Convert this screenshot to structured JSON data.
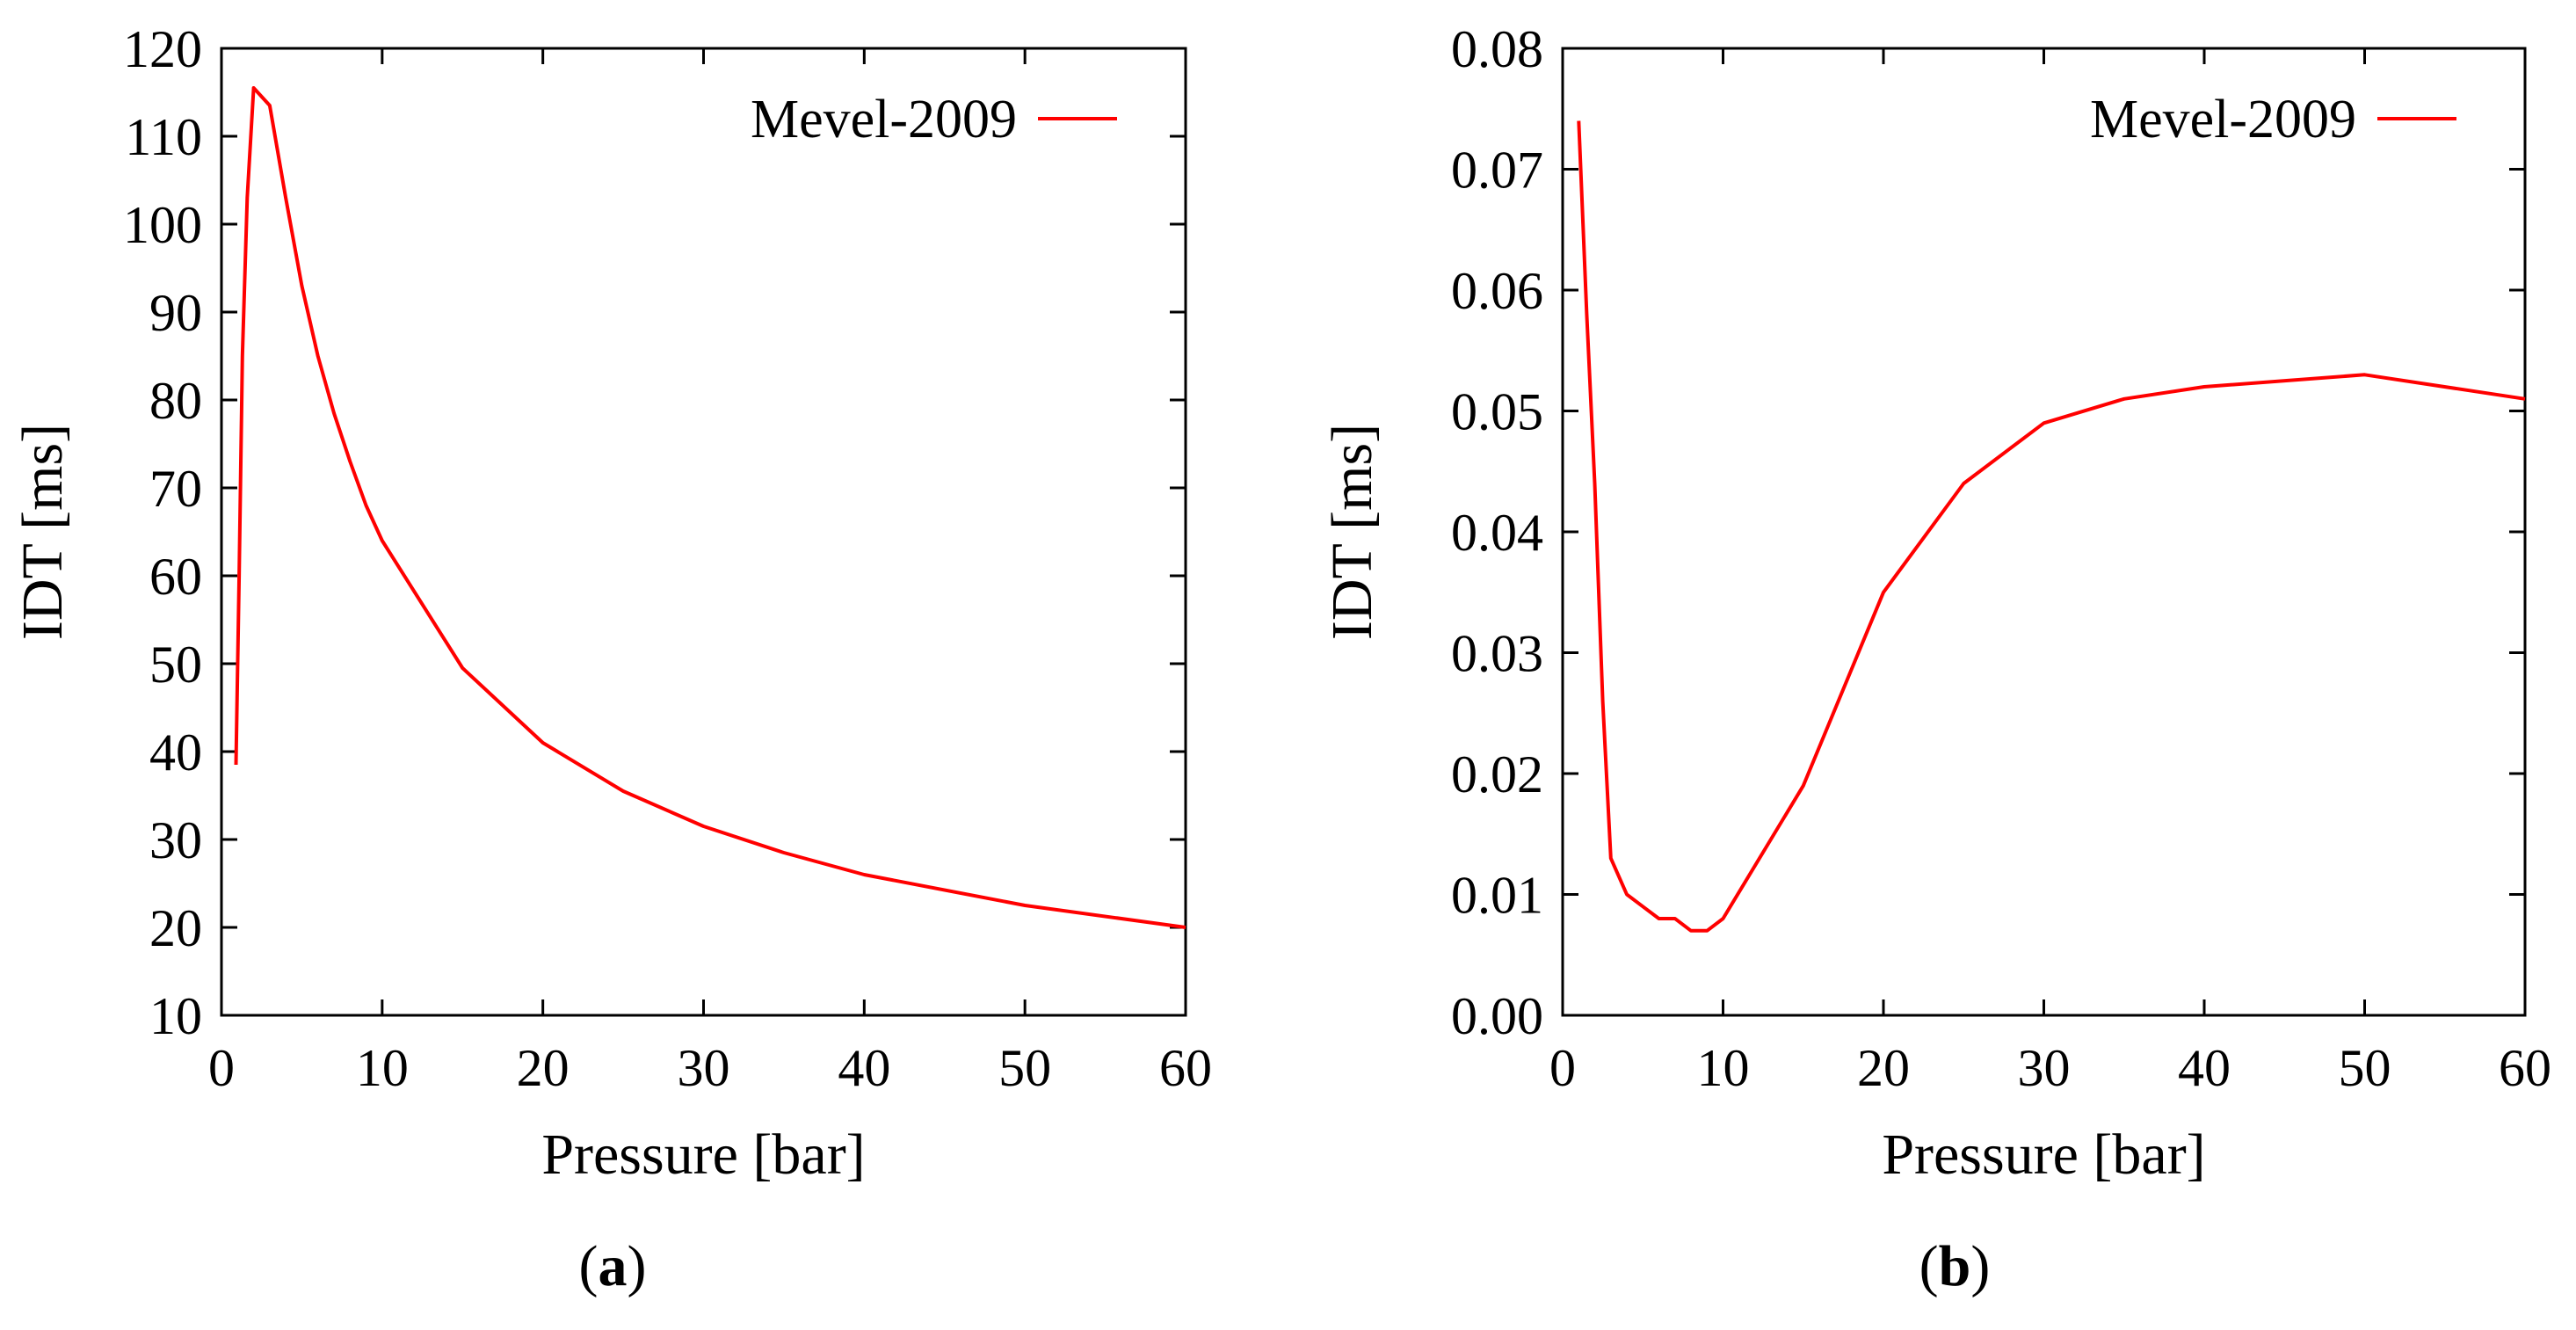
{
  "figure": {
    "panels": [
      {
        "label_open": "(",
        "label_letter": "a",
        "label_close": ")"
      },
      {
        "label_open": "(",
        "label_letter": "b",
        "label_close": ")"
      }
    ]
  },
  "chart_data": [
    {
      "type": "line",
      "title": "",
      "xlabel": "Pressure [bar]",
      "ylabel": "IDT [ms]",
      "xlim": [
        0,
        60
      ],
      "ylim": [
        10,
        120
      ],
      "xticks": [
        0,
        10,
        20,
        30,
        40,
        50,
        60
      ],
      "xtick_labels": [
        "0",
        "10",
        "20",
        "30",
        "40",
        "50",
        "60"
      ],
      "yticks": [
        10,
        20,
        30,
        40,
        50,
        60,
        70,
        80,
        90,
        100,
        110,
        120
      ],
      "ytick_labels": [
        "10",
        "20",
        "30",
        "40",
        "50",
        "60",
        "70",
        "80",
        "90",
        "100",
        "110",
        "120"
      ],
      "legend_position": "top-right",
      "series": [
        {
          "name": "Mevel-2009",
          "color": "#ff0000",
          "x": [
            0.9,
            1.1,
            1.3,
            1.6,
            2,
            3,
            4,
            5,
            6,
            7,
            8,
            9,
            10,
            15,
            20,
            25,
            30,
            35,
            40,
            50,
            60
          ],
          "y": [
            38.5,
            60,
            85,
            103,
            115.5,
            113.5,
            103,
            93,
            85,
            78.5,
            73,
            68,
            64,
            49.5,
            41,
            35.5,
            31.5,
            28.5,
            26,
            22.5,
            20
          ]
        }
      ]
    },
    {
      "type": "line",
      "title": "",
      "xlabel": "Pressure [bar]",
      "ylabel": "IDT [ms]",
      "xlim": [
        0,
        60
      ],
      "ylim": [
        0,
        0.08
      ],
      "xticks": [
        0,
        10,
        20,
        30,
        40,
        50,
        60
      ],
      "xtick_labels": [
        "0",
        "10",
        "20",
        "30",
        "40",
        "50",
        "60"
      ],
      "yticks": [
        0,
        0.01,
        0.02,
        0.03,
        0.04,
        0.05,
        0.06,
        0.07,
        0.08
      ],
      "ytick_labels": [
        "0.00",
        "0.01",
        "0.02",
        "0.03",
        "0.04",
        "0.05",
        "0.06",
        "0.07",
        "0.08"
      ],
      "legend_position": "top-right",
      "series": [
        {
          "name": "Mevel-2009",
          "color": "#ff0000",
          "x": [
            1,
            1.5,
            2,
            2.5,
            3,
            4,
            5,
            6,
            7,
            8,
            9,
            10,
            15,
            20,
            25,
            30,
            35,
            40,
            50,
            60
          ],
          "y": [
            0.074,
            0.058,
            0.044,
            0.026,
            0.013,
            0.01,
            0.009,
            0.008,
            0.008,
            0.007,
            0.007,
            0.008,
            0.019,
            0.035,
            0.044,
            0.049,
            0.051,
            0.052,
            0.053,
            0.051
          ]
        }
      ]
    }
  ]
}
